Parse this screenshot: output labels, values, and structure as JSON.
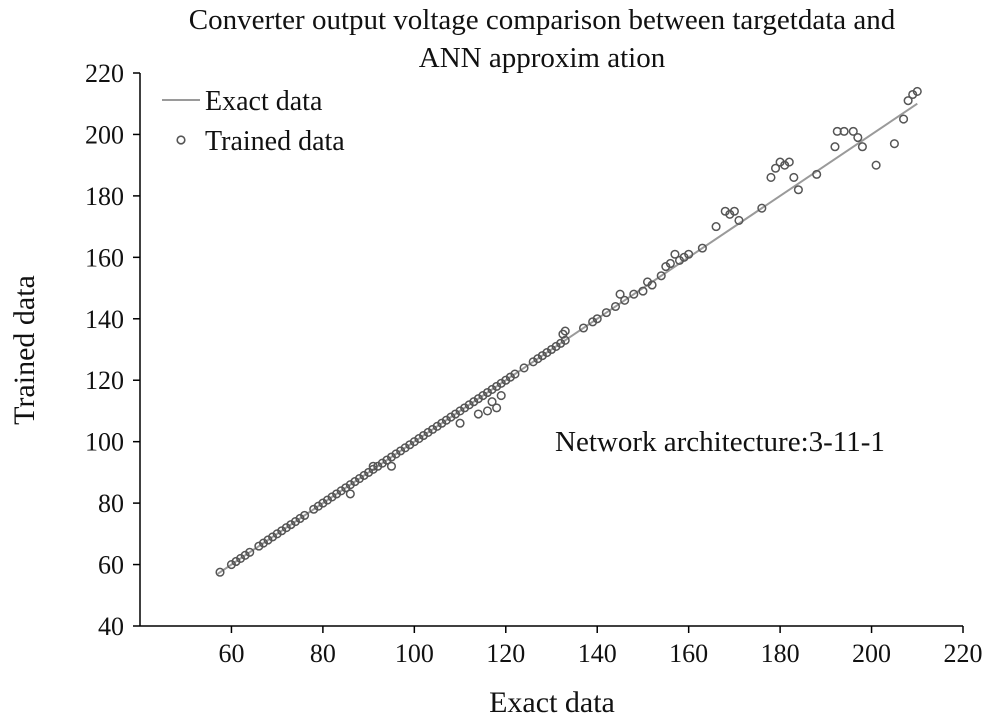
{
  "chart_data": {
    "type": "scatter",
    "title_line1": "Converter output voltage comparison between targetdata and",
    "title_line2": "ANN approxim ation",
    "xlabel": "Exact data",
    "ylabel": "Trained data",
    "xlim": [
      40,
      220
    ],
    "ylim": [
      40,
      220
    ],
    "xticks": [
      60,
      80,
      100,
      120,
      140,
      160,
      180,
      200,
      220
    ],
    "yticks": [
      40,
      60,
      80,
      100,
      120,
      140,
      160,
      180,
      200,
      220
    ],
    "grid": false,
    "legend_position": "top-left",
    "annotation": "Network architecture:3-11-1",
    "series": [
      {
        "name": "Exact data",
        "kind": "line",
        "color": "#9a9a9a",
        "x": [
          57,
          210
        ],
        "y": [
          57,
          210
        ]
      },
      {
        "name": "Trained data",
        "kind": "markers",
        "color": "#555555",
        "x": [
          57.5,
          60,
          61,
          62,
          63,
          64,
          66,
          67,
          68,
          69,
          70,
          71,
          72,
          73,
          74,
          75,
          76,
          78,
          79,
          80,
          81,
          82,
          83,
          84,
          85,
          86,
          87,
          88,
          89,
          90,
          91,
          92,
          93,
          94,
          95,
          96,
          97,
          98,
          99,
          100,
          101,
          102,
          103,
          104,
          105,
          106,
          107,
          108,
          109,
          110,
          111,
          112,
          113,
          114,
          115,
          116,
          117,
          118,
          119,
          120,
          121,
          122,
          124,
          126,
          127,
          128,
          129,
          130,
          131,
          132,
          133,
          137,
          139,
          140,
          142,
          144,
          145,
          146,
          148,
          150,
          151,
          152,
          154,
          155,
          156,
          157,
          158,
          159,
          160,
          163,
          166,
          168,
          169,
          170,
          171,
          176,
          178,
          179,
          180,
          181,
          182,
          183,
          184,
          188,
          192,
          192.5,
          194,
          196,
          197,
          198,
          201,
          205,
          207,
          208,
          209,
          210,
          86,
          91,
          95,
          110,
          114,
          116,
          117,
          118,
          119,
          132.5,
          133
        ],
        "y": [
          57.5,
          60,
          61,
          62,
          63,
          64,
          66,
          67,
          68,
          69,
          70,
          71,
          72,
          73,
          74,
          75,
          76,
          78,
          79,
          80,
          81,
          82,
          83,
          84,
          85,
          86,
          87,
          88,
          89,
          90,
          91,
          92,
          93,
          94,
          95,
          96,
          97,
          98,
          99,
          100,
          101,
          102,
          103,
          104,
          105,
          106,
          107,
          108,
          109,
          110,
          111,
          112,
          113,
          114,
          115,
          116,
          117,
          118,
          119,
          120,
          121,
          122,
          124,
          126,
          127,
          128,
          129,
          130,
          131,
          132,
          133,
          137,
          139,
          140,
          142,
          144,
          148,
          146,
          148,
          149,
          152,
          151,
          154,
          157,
          158,
          161,
          159,
          160,
          161,
          163,
          170,
          175,
          174,
          175,
          172,
          176,
          186,
          189,
          191,
          190,
          191,
          186,
          182,
          187,
          196,
          201,
          201,
          201,
          199,
          196,
          190,
          197,
          205,
          211,
          213,
          214,
          83,
          92,
          92,
          106,
          109,
          110,
          113,
          111,
          115,
          135,
          136
        ]
      }
    ]
  }
}
